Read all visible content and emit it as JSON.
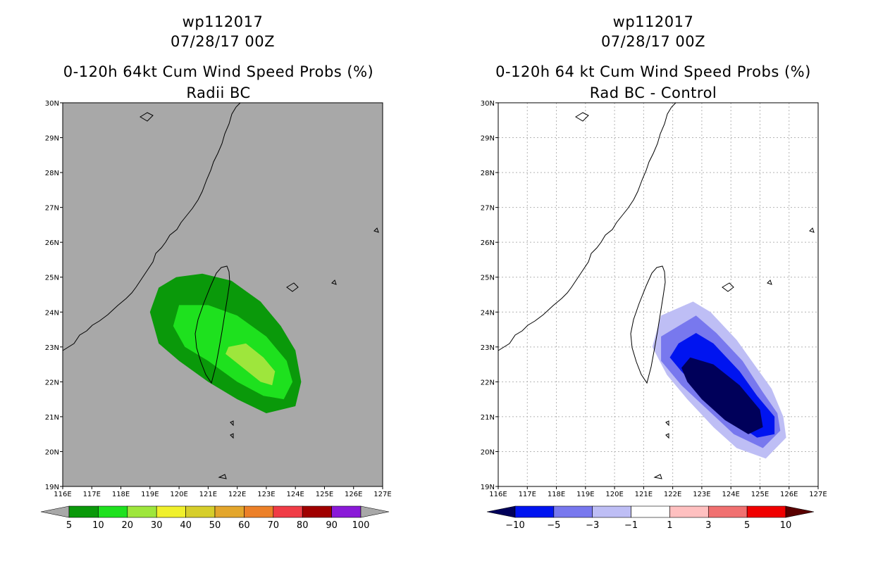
{
  "chart_data": [
    {
      "type": "heatmap",
      "title": [
        "wp112017",
        "07/28/17 00Z",
        "0-120h 64kt Cum Wind Speed Probs (%)",
        "Radii BC"
      ],
      "xlim": [
        116,
        127
      ],
      "ylim": [
        19,
        30
      ],
      "x_tick_labels": [
        "116E",
        "117E",
        "118E",
        "119E",
        "120E",
        "121E",
        "122E",
        "123E",
        "124E",
        "125E",
        "126E",
        "127E"
      ],
      "y_tick_labels": [
        "19N",
        "20N",
        "21N",
        "22N",
        "23N",
        "24N",
        "25N",
        "26N",
        "27N",
        "28N",
        "29N",
        "30N"
      ],
      "background_color": "#a8a8a8",
      "contours": [
        {
          "level": 5,
          "color": "#0a990a",
          "points": [
            [
              119.9,
              25.0
            ],
            [
              120.8,
              25.1
            ],
            [
              121.8,
              24.9
            ],
            [
              122.8,
              24.3
            ],
            [
              123.5,
              23.6
            ],
            [
              124.0,
              22.9
            ],
            [
              124.2,
              22.0
            ],
            [
              124.0,
              21.3
            ],
            [
              123.0,
              21.1
            ],
            [
              122.0,
              21.5
            ],
            [
              121.0,
              22.0
            ],
            [
              120.0,
              22.6
            ],
            [
              119.3,
              23.1
            ],
            [
              119.0,
              24.0
            ],
            [
              119.3,
              24.7
            ]
          ]
        },
        {
          "level": 10,
          "color": "#1ee11e",
          "points": [
            [
              120.0,
              24.2
            ],
            [
              121.0,
              24.2
            ],
            [
              122.0,
              23.9
            ],
            [
              123.0,
              23.3
            ],
            [
              123.7,
              22.6
            ],
            [
              123.9,
              22.0
            ],
            [
              123.6,
              21.5
            ],
            [
              122.9,
              21.6
            ],
            [
              122.0,
              22.0
            ],
            [
              121.0,
              22.6
            ],
            [
              120.2,
              23.0
            ],
            [
              119.8,
              23.6
            ]
          ]
        },
        {
          "level": 20,
          "color": "#9ee63c",
          "points": [
            [
              121.7,
              23.0
            ],
            [
              122.3,
              23.1
            ],
            [
              122.9,
              22.7
            ],
            [
              123.3,
              22.3
            ],
            [
              123.2,
              21.9
            ],
            [
              122.8,
              22.0
            ],
            [
              122.2,
              22.4
            ],
            [
              121.6,
              22.8
            ]
          ]
        }
      ],
      "colorbar": {
        "labels": [
          "5",
          "10",
          "20",
          "30",
          "40",
          "50",
          "60",
          "70",
          "80",
          "90",
          "100"
        ],
        "colors": [
          "#a8a8a8",
          "#0a990a",
          "#1ee11e",
          "#9ee63c",
          "#f0f02c",
          "#d6ce2b",
          "#e3a62c",
          "#ec8028",
          "#f03c46",
          "#a00000",
          "#8a1ad8",
          "#a8a8a8"
        ]
      }
    },
    {
      "type": "heatmap",
      "title": [
        "wp112017",
        "07/28/17 00Z",
        "0-120h 64 kt Cum Wind Speed Probs (%)",
        "Rad BC - Control"
      ],
      "xlim": [
        116,
        127
      ],
      "ylim": [
        19,
        30
      ],
      "x_tick_labels": [
        "116E",
        "117E",
        "118E",
        "119E",
        "120E",
        "121E",
        "122E",
        "123E",
        "124E",
        "125E",
        "126E",
        "127E"
      ],
      "y_tick_labels": [
        "19N",
        "20N",
        "21N",
        "22N",
        "23N",
        "24N",
        "25N",
        "26N",
        "27N",
        "28N",
        "29N",
        "30N"
      ],
      "background_color": "#ffffff",
      "contours": [
        {
          "level": -1,
          "color": "#bebef5",
          "points": [
            [
              122.7,
              24.3
            ],
            [
              123.3,
              24.0
            ],
            [
              124.2,
              23.2
            ],
            [
              124.8,
              22.5
            ],
            [
              125.4,
              21.8
            ],
            [
              125.8,
              21.0
            ],
            [
              125.9,
              20.4
            ],
            [
              125.2,
              19.8
            ],
            [
              124.2,
              20.1
            ],
            [
              123.4,
              20.7
            ],
            [
              122.5,
              21.5
            ],
            [
              121.8,
              22.2
            ],
            [
              121.3,
              23.0
            ],
            [
              121.6,
              23.9
            ]
          ]
        },
        {
          "level": -3,
          "color": "#7878ee",
          "points": [
            [
              122.8,
              23.9
            ],
            [
              123.5,
              23.4
            ],
            [
              124.4,
              22.6
            ],
            [
              125.1,
              21.7
            ],
            [
              125.6,
              21.1
            ],
            [
              125.7,
              20.6
            ],
            [
              125.1,
              20.1
            ],
            [
              124.1,
              20.5
            ],
            [
              123.2,
              21.2
            ],
            [
              122.3,
              21.9
            ],
            [
              121.6,
              22.6
            ],
            [
              121.6,
              23.3
            ]
          ]
        },
        {
          "level": -5,
          "color": "#0014f0",
          "points": [
            [
              122.8,
              23.4
            ],
            [
              123.4,
              23.1
            ],
            [
              124.3,
              22.3
            ],
            [
              124.9,
              21.6
            ],
            [
              125.5,
              21.0
            ],
            [
              125.5,
              20.5
            ],
            [
              124.9,
              20.4
            ],
            [
              124.0,
              20.9
            ],
            [
              123.0,
              21.7
            ],
            [
              122.3,
              22.3
            ],
            [
              121.9,
              22.7
            ],
            [
              122.2,
              23.1
            ]
          ]
        },
        {
          "level": -10,
          "color": "#00005a",
          "points": [
            [
              122.6,
              22.7
            ],
            [
              123.4,
              22.5
            ],
            [
              124.3,
              21.9
            ],
            [
              125.0,
              21.2
            ],
            [
              125.1,
              20.7
            ],
            [
              124.6,
              20.5
            ],
            [
              123.8,
              20.9
            ],
            [
              123.0,
              21.5
            ],
            [
              122.5,
              22.0
            ],
            [
              122.3,
              22.4
            ]
          ]
        }
      ],
      "colorbar": {
        "labels": [
          "-10",
          "-5",
          "-3",
          "-1",
          "1",
          "3",
          "5",
          "10"
        ],
        "colors": [
          "#00005a",
          "#0014f0",
          "#7878ee",
          "#bebef5",
          "#ffffff",
          "#ffc0c0",
          "#f07070",
          "#f00000",
          "#5a0000"
        ]
      }
    }
  ]
}
